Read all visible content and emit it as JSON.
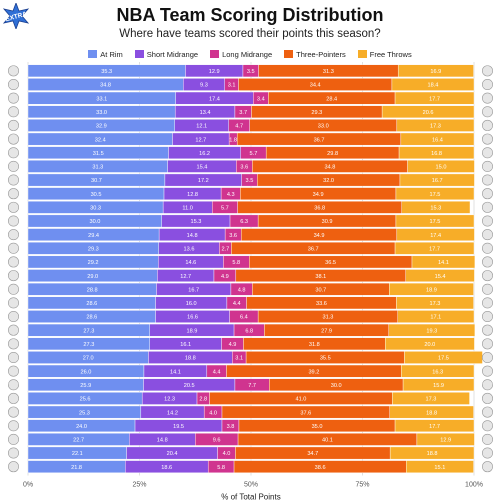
{
  "header": {
    "badge": "EXTRA",
    "title": "NBA Team Scoring Distribution",
    "subtitle": "Where have teams scored their points this season?"
  },
  "chart_data": {
    "type": "bar",
    "orientation": "horizontal",
    "stacked": true,
    "xlabel": "% of Total Points",
    "xlim": [
      0,
      100
    ],
    "xticks": [
      "0%",
      "25%",
      "50%",
      "75%",
      "100%"
    ],
    "legend_position": "top",
    "grid": true,
    "team_logo_count": 30,
    "series": [
      {
        "name": "At Rim",
        "color": "#6f8ff0",
        "values": [
          35.3,
          34.8,
          33.1,
          33.0,
          32.9,
          32.4,
          31.5,
          31.3,
          30.7,
          30.5,
          30.3,
          30.0,
          29.4,
          29.3,
          29.2,
          29.0,
          28.8,
          28.6,
          28.6,
          27.3,
          27.3,
          27.0,
          26.0,
          25.9,
          25.6,
          25.3,
          24.0,
          22.7,
          22.1,
          21.8
        ]
      },
      {
        "name": "Short Midrange",
        "color": "#8a4fe0",
        "values": [
          12.9,
          9.3,
          17.4,
          13.4,
          12.1,
          12.7,
          16.2,
          15.4,
          17.2,
          12.8,
          11.0,
          15.3,
          14.8,
          13.6,
          14.6,
          12.7,
          16.7,
          16.0,
          16.6,
          18.9,
          16.1,
          18.8,
          14.1,
          20.5,
          12.3,
          14.2,
          19.5,
          14.8,
          20.4,
          18.6
        ]
      },
      {
        "name": "Long Midrange",
        "color": "#d0348f",
        "values": [
          3.5,
          3.1,
          3.4,
          3.7,
          4.7,
          1.8,
          5.7,
          3.6,
          3.5,
          4.3,
          5.7,
          6.3,
          3.6,
          2.7,
          5.8,
          4.9,
          4.8,
          4.4,
          6.4,
          6.8,
          4.9,
          3.1,
          4.4,
          7.7,
          2.8,
          4.0,
          3.8,
          9.6,
          4.0,
          5.8
        ]
      },
      {
        "name": "Three-Pointers",
        "color": "#ee6010",
        "values": [
          31.3,
          34.4,
          28.4,
          29.3,
          33.0,
          36.7,
          29.8,
          34.8,
          32.0,
          34.9,
          36.8,
          30.9,
          34.9,
          36.7,
          36.5,
          38.1,
          30.7,
          33.6,
          31.3,
          27.9,
          31.8,
          35.5,
          39.2,
          30.0,
          41.0,
          37.6,
          35.0,
          40.1,
          34.7,
          38.6
        ]
      },
      {
        "name": "Free Throws",
        "color": "#f7ad28",
        "values": [
          16.9,
          18.4,
          17.7,
          20.6,
          17.3,
          16.4,
          16.8,
          15.0,
          16.7,
          17.5,
          15.3,
          17.5,
          17.4,
          17.7,
          14.1,
          15.4,
          18.9,
          17.3,
          17.1,
          19.3,
          20.0,
          17.5,
          16.3,
          15.9,
          17.3,
          18.8,
          17.7,
          12.9,
          18.8,
          15.1
        ]
      }
    ]
  }
}
